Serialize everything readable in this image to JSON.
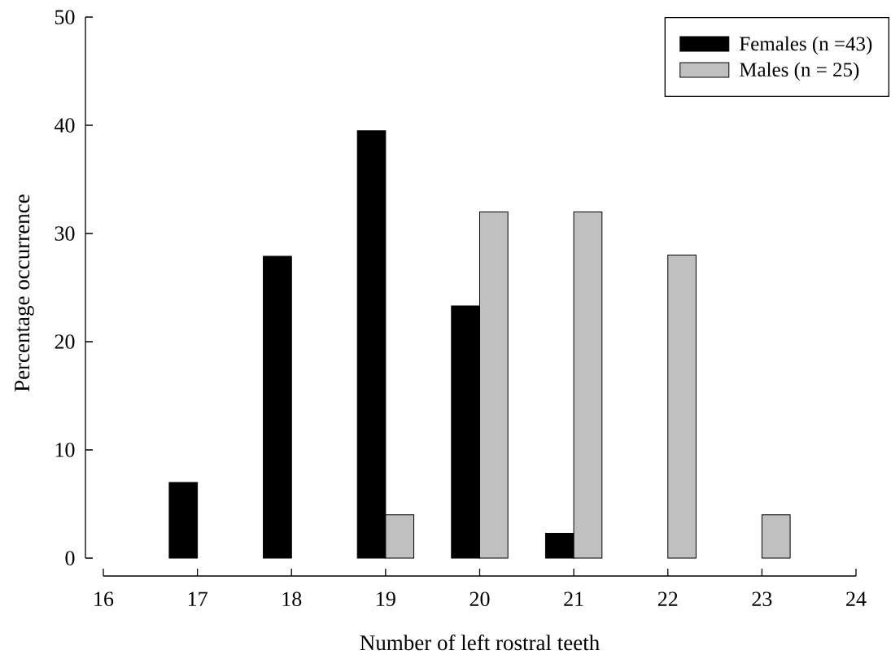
{
  "chart_data": {
    "type": "bar",
    "xlabel": "Number of left rostral teeth",
    "ylabel": "Percentage occurrence",
    "series": [
      {
        "name": "Females (n =43)",
        "color": "#000000",
        "x": [
          17,
          18,
          19,
          20,
          21
        ],
        "values": [
          7.0,
          27.9,
          39.5,
          23.3,
          2.3
        ]
      },
      {
        "name": "Males (n = 25)",
        "color": "#c0c0c0",
        "x": [
          19,
          20,
          21,
          22,
          23
        ],
        "values": [
          4,
          32,
          32,
          28,
          4
        ]
      }
    ],
    "xlim": [
      16,
      24
    ],
    "xticks": [
      16,
      17,
      18,
      19,
      20,
      21,
      22,
      23,
      24
    ],
    "ylim": [
      0,
      50
    ],
    "yticks": [
      0,
      10,
      20,
      30,
      40,
      50
    ],
    "legend": "top right"
  }
}
